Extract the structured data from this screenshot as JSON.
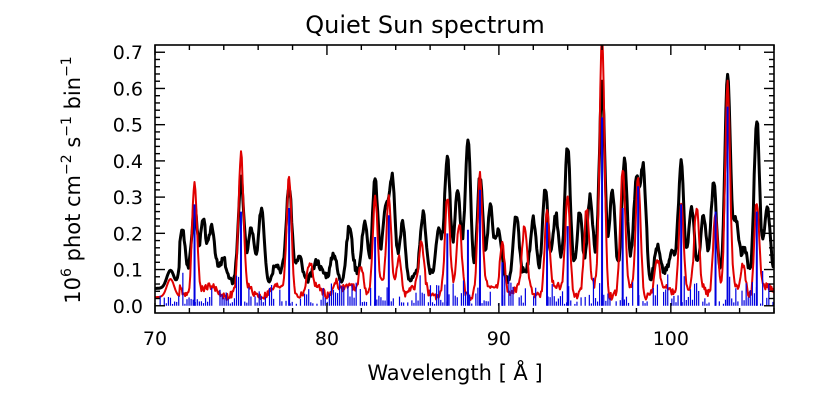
{
  "chart_data": {
    "type": "line",
    "title": "Quiet Sun spectrum",
    "xlabel": "Wavelength [ Å ]",
    "ylabel_parts": [
      "10",
      "6",
      " phot cm",
      "−2",
      " s",
      "−1",
      " bin",
      "−1"
    ],
    "xlim": [
      70,
      106
    ],
    "ylim": [
      -0.02,
      0.72
    ],
    "xticks": [
      70,
      80,
      90,
      100
    ],
    "xtick_labels": [
      "70",
      "80",
      "90",
      "100"
    ],
    "yticks": [
      0.0,
      0.1,
      0.2,
      0.3,
      0.4,
      0.5,
      0.6,
      0.7
    ],
    "ytick_labels": [
      "0.0",
      "0.1",
      "0.2",
      "0.3",
      "0.4",
      "0.5",
      "0.6",
      "0.7"
    ],
    "grid": false,
    "series": [
      {
        "color": "#000000",
        "baseline": 0.08,
        "lines": [
          [
            71.6,
            0.2
          ],
          [
            72.3,
            0.29
          ],
          [
            72.8,
            0.24
          ],
          [
            73.3,
            0.21
          ],
          [
            74.0,
            0.13
          ],
          [
            75.0,
            0.35
          ],
          [
            75.6,
            0.2
          ],
          [
            76.2,
            0.28
          ],
          [
            77.0,
            0.12
          ],
          [
            77.8,
            0.32
          ],
          [
            78.4,
            0.15
          ],
          [
            79.4,
            0.11
          ],
          [
            80.4,
            0.16
          ],
          [
            81.3,
            0.21
          ],
          [
            82.2,
            0.24
          ],
          [
            82.8,
            0.36
          ],
          [
            83.4,
            0.26
          ],
          [
            83.8,
            0.34
          ],
          [
            84.4,
            0.24
          ],
          [
            85.6,
            0.24
          ],
          [
            86.5,
            0.23
          ],
          [
            87.0,
            0.42
          ],
          [
            87.6,
            0.3
          ],
          [
            88.2,
            0.46
          ],
          [
            88.9,
            0.37
          ],
          [
            89.5,
            0.26
          ],
          [
            90.0,
            0.2
          ],
          [
            91.0,
            0.26
          ],
          [
            92.0,
            0.23
          ],
          [
            92.7,
            0.34
          ],
          [
            93.3,
            0.25
          ],
          [
            94.0,
            0.43
          ],
          [
            94.7,
            0.27
          ],
          [
            95.3,
            0.3
          ],
          [
            96.0,
            0.6
          ],
          [
            96.6,
            0.33
          ],
          [
            97.3,
            0.4
          ],
          [
            98.0,
            0.33
          ],
          [
            98.4,
            0.38
          ],
          [
            99.2,
            0.17
          ],
          [
            100.1,
            0.14
          ],
          [
            100.6,
            0.41
          ],
          [
            101.2,
            0.28
          ],
          [
            101.9,
            0.23
          ],
          [
            102.5,
            0.35
          ],
          [
            103.3,
            0.64
          ],
          [
            103.8,
            0.22
          ],
          [
            104.3,
            0.15
          ],
          [
            105.0,
            0.53
          ],
          [
            105.6,
            0.27
          ]
        ]
      },
      {
        "color": "#e00000",
        "baseline": 0.04,
        "lines": [
          [
            72.3,
            0.36
          ],
          [
            75.0,
            0.41
          ],
          [
            77.8,
            0.36
          ],
          [
            79.0,
            0.11
          ],
          [
            80.5,
            0.08
          ],
          [
            82.0,
            0.12
          ],
          [
            82.8,
            0.3
          ],
          [
            83.6,
            0.29
          ],
          [
            84.2,
            0.15
          ],
          [
            85.5,
            0.17
          ],
          [
            87.0,
            0.29
          ],
          [
            87.7,
            0.22
          ],
          [
            88.9,
            0.36
          ],
          [
            90.2,
            0.19
          ],
          [
            91.5,
            0.21
          ],
          [
            92.8,
            0.27
          ],
          [
            94.0,
            0.3
          ],
          [
            95.1,
            0.26
          ],
          [
            96.0,
            0.75
          ],
          [
            97.2,
            0.37
          ],
          [
            98.1,
            0.36
          ],
          [
            99.2,
            0.12
          ],
          [
            100.6,
            0.3
          ],
          [
            101.5,
            0.26
          ],
          [
            102.6,
            0.27
          ],
          [
            103.3,
            0.61
          ],
          [
            104.2,
            0.12
          ],
          [
            105.0,
            0.29
          ]
        ]
      },
      {
        "color": "#0000e0",
        "baseline": 0.0,
        "lines": [
          [
            72.3,
            0.28
          ],
          [
            75.0,
            0.26
          ],
          [
            77.8,
            0.27
          ],
          [
            82.8,
            0.19
          ],
          [
            83.6,
            0.25
          ],
          [
            87.0,
            0.2
          ],
          [
            88.2,
            0.21
          ],
          [
            88.9,
            0.32
          ],
          [
            90.2,
            0.12
          ],
          [
            92.8,
            0.23
          ],
          [
            94.0,
            0.22
          ],
          [
            96.0,
            0.52
          ],
          [
            97.2,
            0.27
          ],
          [
            98.1,
            0.33
          ],
          [
            100.6,
            0.28
          ],
          [
            102.6,
            0.26
          ],
          [
            103.3,
            0.55
          ],
          [
            105.0,
            0.26
          ]
        ]
      }
    ]
  }
}
